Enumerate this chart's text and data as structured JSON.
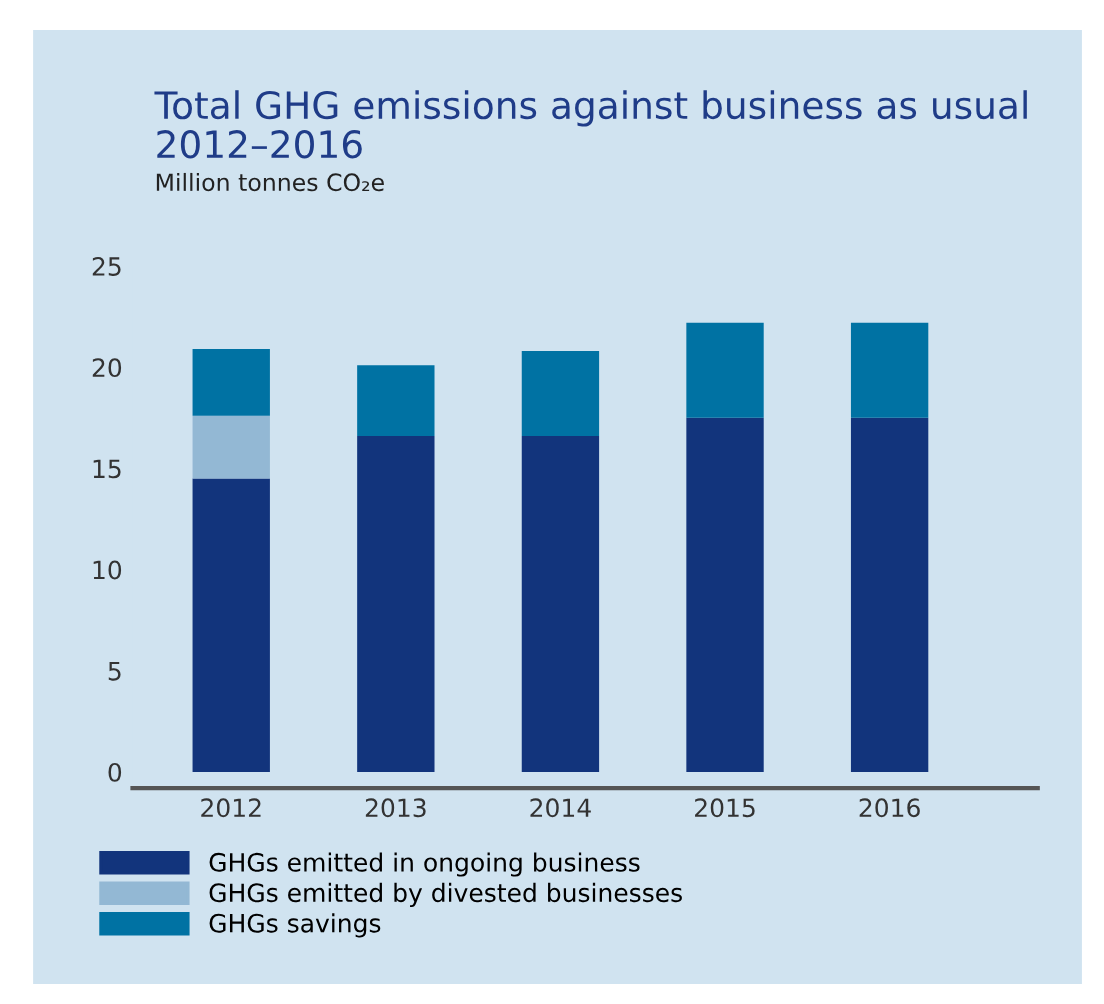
{
  "chart_data": {
    "type": "bar",
    "title": "Total GHG emissions against business as usual\n2012–2016",
    "ylabel": "Million tonnes CO₂e",
    "categories": [
      "2012",
      "2013",
      "2014",
      "2015",
      "2016"
    ],
    "stacked": true,
    "series": [
      {
        "name": "GHGs emitted in ongoing business",
        "color": "#12347c",
        "values": [
          14.5,
          16.6,
          16.6,
          17.5,
          17.5
        ]
      },
      {
        "name": "GHGs emitted by divested businesses",
        "color": "#93b8d4",
        "values": [
          3.1,
          0,
          0,
          0,
          0
        ]
      },
      {
        "name": "GHGs savings",
        "color": "#0072a3",
        "values": [
          3.3,
          3.5,
          4.2,
          4.7,
          4.7
        ]
      }
    ],
    "ylim": [
      -0.8,
      25
    ],
    "yticks": [
      0,
      5,
      10,
      15,
      20,
      25
    ],
    "grid": false,
    "legend": "bottom"
  }
}
